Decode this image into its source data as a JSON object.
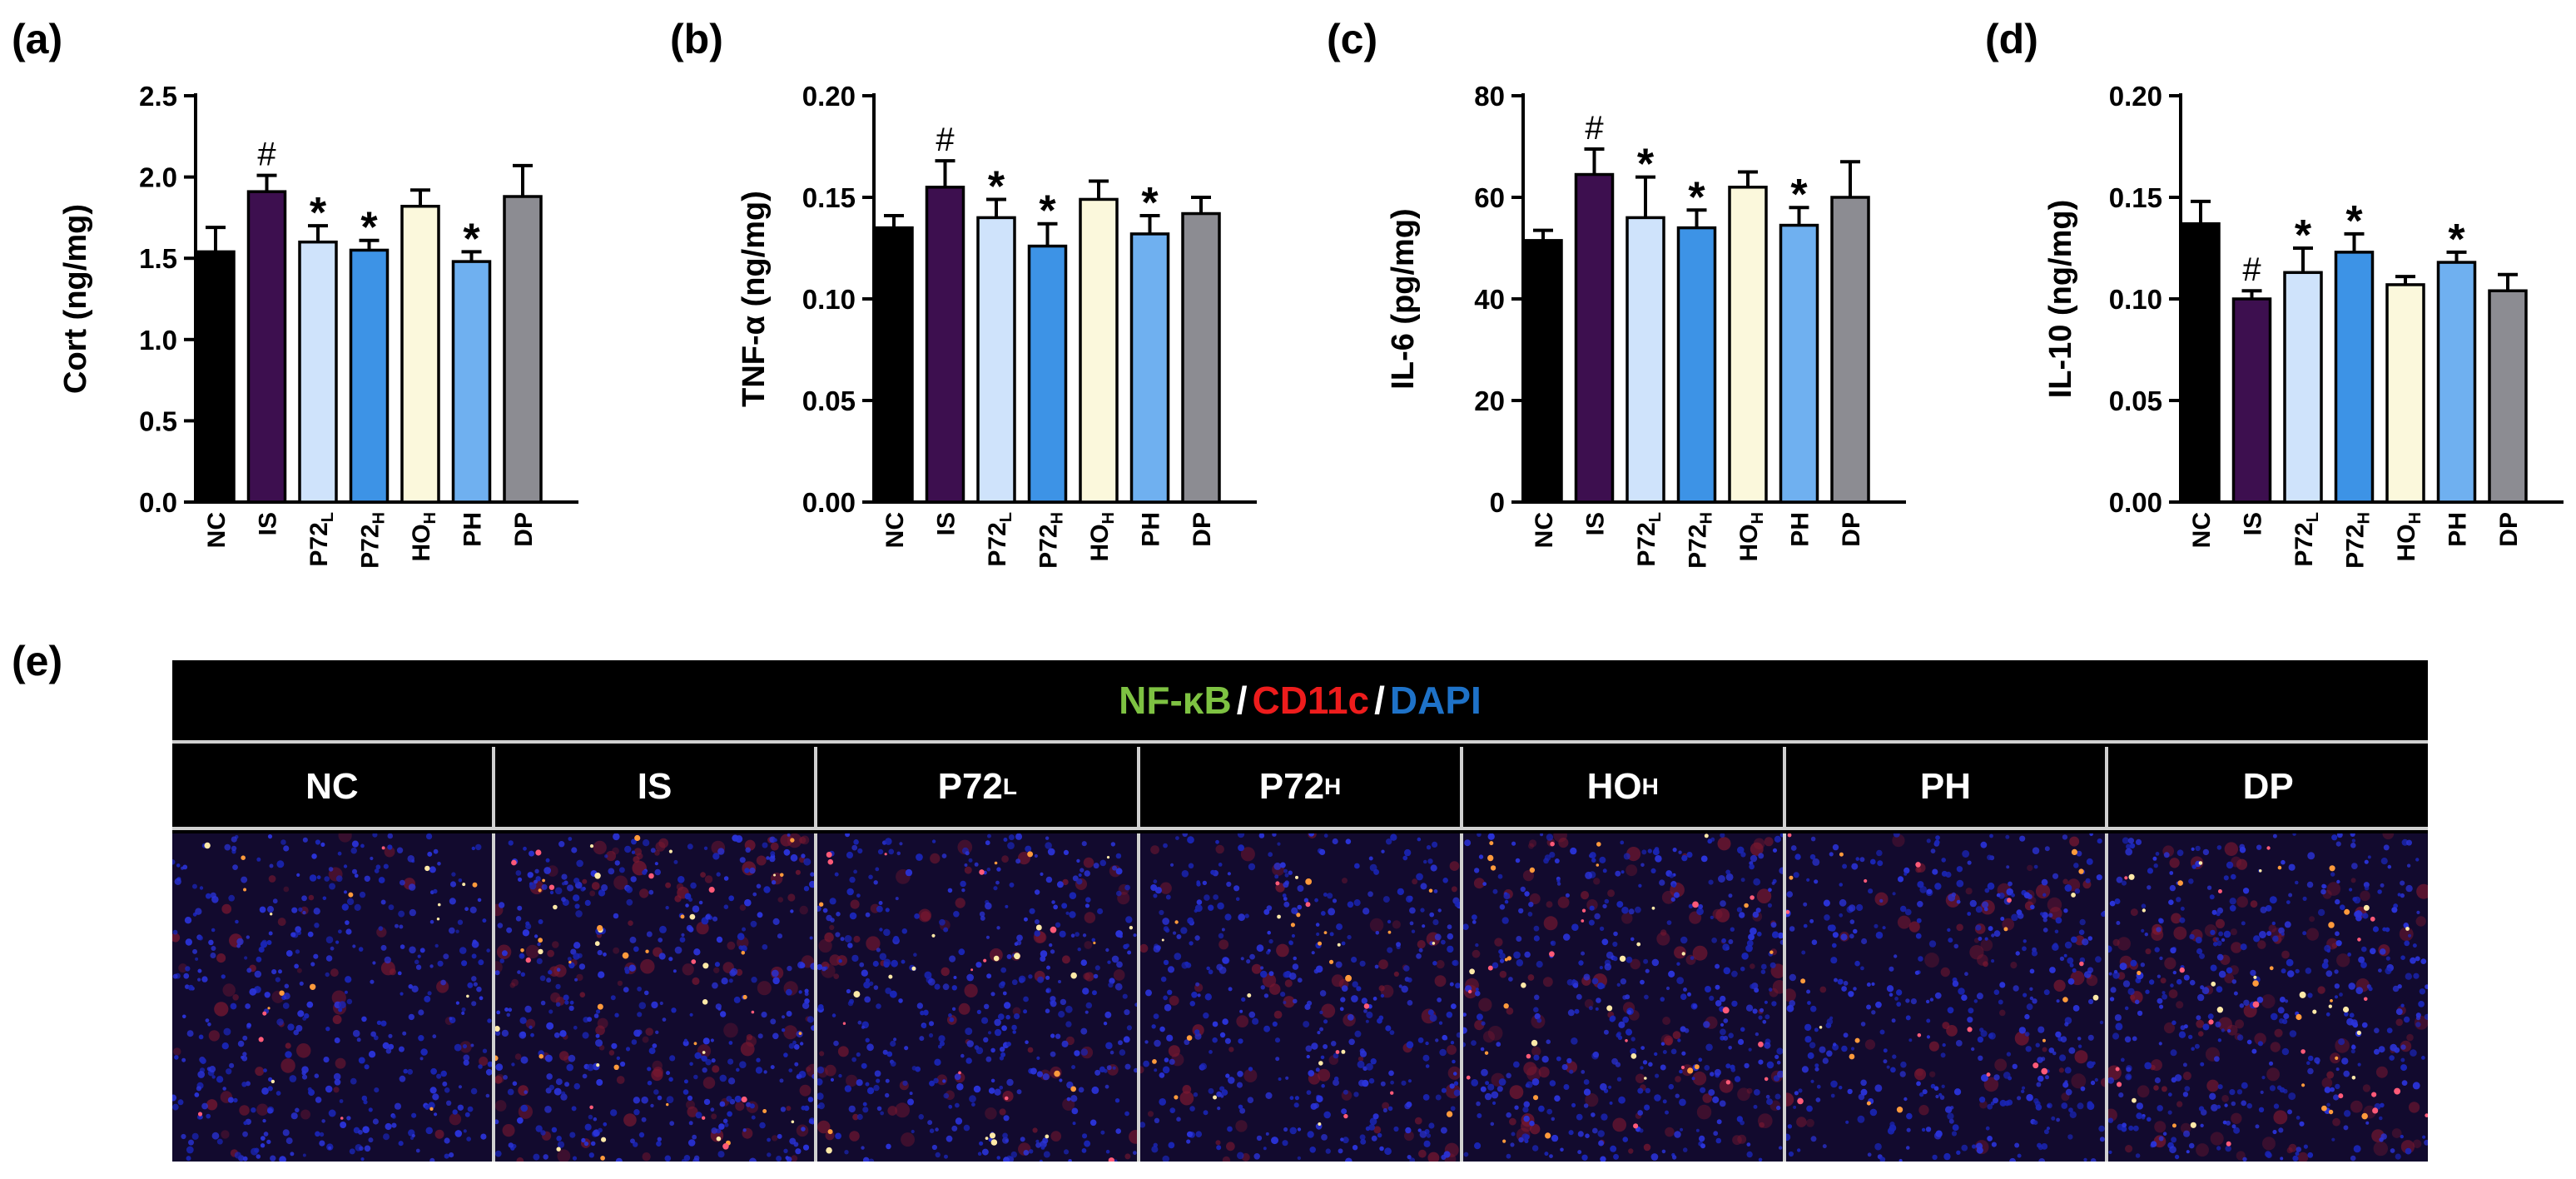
{
  "panel_labels": [
    "(a)",
    "(b)",
    "(c)",
    "(d)",
    "(e)"
  ],
  "chart_data": [
    {
      "type": "bar",
      "panel": "(a)",
      "ylabel": "Cort (ng/mg)",
      "ylim": [
        0,
        2.5
      ],
      "yticks": [
        "0.0",
        "0.5",
        "1.0",
        "1.5",
        "2.0",
        "2.5"
      ],
      "categories": [
        {
          "main": "NC",
          "sub": ""
        },
        {
          "main": "IS",
          "sub": ""
        },
        {
          "main": "P72",
          "sub": "L"
        },
        {
          "main": "P72",
          "sub": "H"
        },
        {
          "main": "HO",
          "sub": "H"
        },
        {
          "main": "PH",
          "sub": ""
        },
        {
          "main": "DP",
          "sub": ""
        }
      ],
      "values": [
        1.54,
        1.91,
        1.6,
        1.55,
        1.82,
        1.48,
        1.88
      ],
      "errors": [
        0.15,
        0.1,
        0.1,
        0.06,
        0.1,
        0.06,
        0.19
      ],
      "annotations": [
        "",
        "#",
        "*",
        "*",
        "",
        "*",
        ""
      ]
    },
    {
      "type": "bar",
      "panel": "(b)",
      "ylabel": "TNF-α (ng/mg)",
      "ylim": [
        0,
        0.2
      ],
      "yticks": [
        "0.00",
        "0.05",
        "0.10",
        "0.15",
        "0.20"
      ],
      "categories": [
        {
          "main": "NC",
          "sub": ""
        },
        {
          "main": "IS",
          "sub": ""
        },
        {
          "main": "P72",
          "sub": "L"
        },
        {
          "main": "P72",
          "sub": "H"
        },
        {
          "main": "HO",
          "sub": "H"
        },
        {
          "main": "PH",
          "sub": ""
        },
        {
          "main": "DP",
          "sub": ""
        }
      ],
      "values": [
        0.135,
        0.155,
        0.14,
        0.126,
        0.149,
        0.132,
        0.142
      ],
      "errors": [
        0.006,
        0.013,
        0.009,
        0.011,
        0.009,
        0.009,
        0.008
      ],
      "annotations": [
        "",
        "#",
        "*",
        "*",
        "",
        "*",
        ""
      ]
    },
    {
      "type": "bar",
      "panel": "(c)",
      "ylabel": "IL-6 (pg/mg)",
      "ylim": [
        0,
        80
      ],
      "yticks": [
        "0",
        "20",
        "40",
        "60",
        "80"
      ],
      "categories": [
        {
          "main": "NC",
          "sub": ""
        },
        {
          "main": "IS",
          "sub": ""
        },
        {
          "main": "P72",
          "sub": "L"
        },
        {
          "main": "P72",
          "sub": "H"
        },
        {
          "main": "HO",
          "sub": "H"
        },
        {
          "main": "PH",
          "sub": ""
        },
        {
          "main": "DP",
          "sub": ""
        }
      ],
      "values": [
        51.5,
        64.5,
        56.0,
        54.0,
        62.0,
        54.5,
        60.0
      ],
      "errors": [
        2.0,
        5.0,
        8.0,
        3.5,
        3.0,
        3.5,
        7.0
      ],
      "annotations": [
        "",
        "#",
        "*",
        "*",
        "",
        "*",
        ""
      ]
    },
    {
      "type": "bar",
      "panel": "(d)",
      "ylabel": "IL-10 (ng/mg)",
      "ylim": [
        0,
        0.2
      ],
      "yticks": [
        "0.00",
        "0.05",
        "0.10",
        "0.15",
        "0.20"
      ],
      "categories": [
        {
          "main": "NC",
          "sub": ""
        },
        {
          "main": "IS",
          "sub": ""
        },
        {
          "main": "P72",
          "sub": "L"
        },
        {
          "main": "P72",
          "sub": "H"
        },
        {
          "main": "HO",
          "sub": "H"
        },
        {
          "main": "PH",
          "sub": ""
        },
        {
          "main": "DP",
          "sub": ""
        }
      ],
      "values": [
        0.137,
        0.1,
        0.113,
        0.123,
        0.107,
        0.118,
        0.104
      ],
      "errors": [
        0.011,
        0.004,
        0.012,
        0.009,
        0.004,
        0.005,
        0.008
      ],
      "annotations": [
        "",
        "#",
        "*",
        "*",
        "",
        "*",
        ""
      ]
    }
  ],
  "bar_colors": [
    "#000000",
    "#3d0f4f",
    "#cfe3fb",
    "#3d93e6",
    "#fbf8dc",
    "#6fb0f0",
    "#8c8c92"
  ],
  "micrograph": {
    "legend": [
      {
        "text": "NF-κB",
        "color": "#7ec242"
      },
      {
        "text": " / ",
        "color": "#ffffff"
      },
      {
        "text": "CD11c",
        "color": "#ee1c1c"
      },
      {
        "text": " / ",
        "color": "#ffffff"
      },
      {
        "text": "DAPI",
        "color": "#1e72c8"
      }
    ],
    "columns": [
      {
        "main": "NC",
        "sub": ""
      },
      {
        "main": "IS",
        "sub": ""
      },
      {
        "main": "P72",
        "sub": "L"
      },
      {
        "main": "P72",
        "sub": "H"
      },
      {
        "main": "HO",
        "sub": "H"
      },
      {
        "main": "PH",
        "sub": ""
      },
      {
        "main": "DP",
        "sub": ""
      }
    ]
  }
}
